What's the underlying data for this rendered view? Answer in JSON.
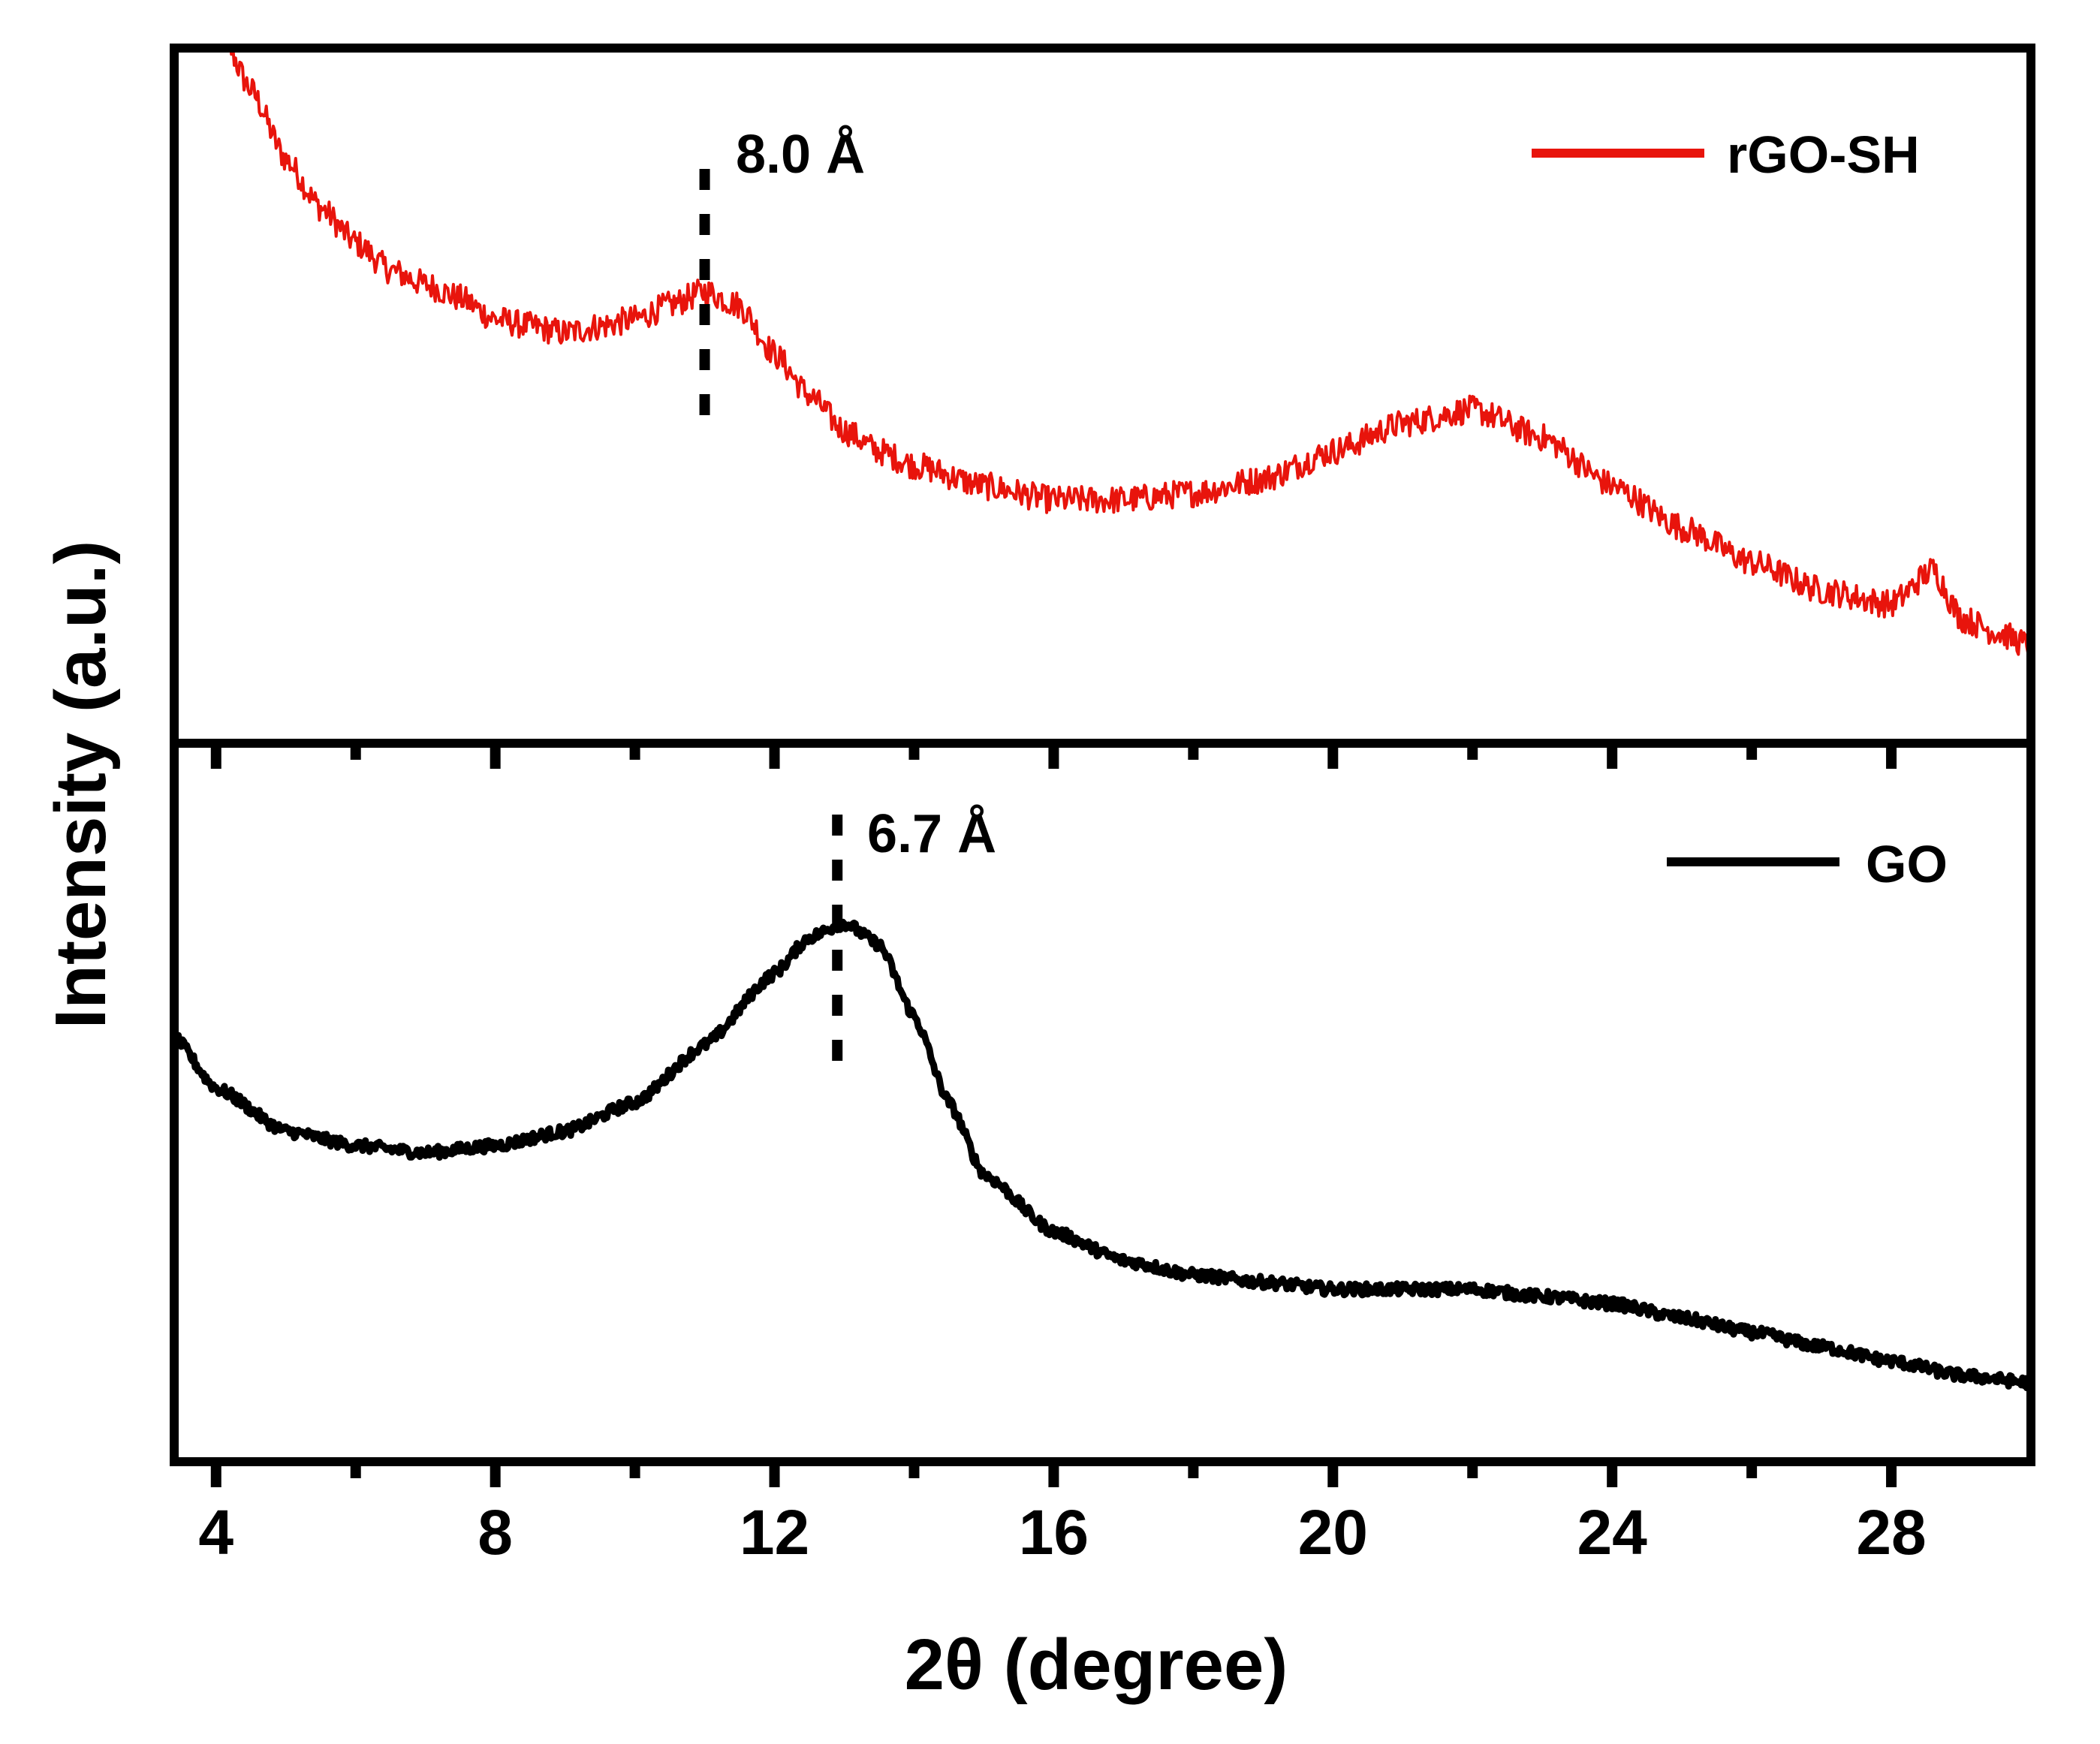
{
  "chart_data": {
    "type": "line",
    "layout": "stacked-panels",
    "xlabel": "2θ (degree)",
    "ylabel": "Intensity (a.u.)",
    "xlim": [
      3.4,
      30
    ],
    "x_ticks": [
      4,
      8,
      12,
      16,
      20,
      24,
      28
    ],
    "x_minor_ticks": [
      6,
      10,
      14,
      18,
      22,
      26
    ],
    "grid": false,
    "panels": [
      {
        "position": "top",
        "ylim": [
          0,
          100
        ],
        "series": [
          {
            "name": "rGO-SH",
            "color": "#e8140c",
            "noise": 2.0,
            "points": [
              [
                4.0,
                104
              ],
              [
                4.5,
                94
              ],
              [
                5.0,
                84
              ],
              [
                5.5,
                77
              ],
              [
                6.0,
                72
              ],
              [
                6.5,
                68
              ],
              [
                7.0,
                66
              ],
              [
                7.5,
                64
              ],
              [
                8.0,
                61
              ],
              [
                8.5,
                60
              ],
              [
                9.0,
                59
              ],
              [
                9.5,
                60
              ],
              [
                10.0,
                61
              ],
              [
                10.5,
                63
              ],
              [
                11.0,
                65
              ],
              [
                11.5,
                63
              ],
              [
                12.0,
                56
              ],
              [
                12.5,
                50
              ],
              [
                13.0,
                45
              ],
              [
                13.5,
                42
              ],
              [
                14.0,
                40
              ],
              [
                15.0,
                37
              ],
              [
                16.0,
                35
              ],
              [
                17.0,
                35
              ],
              [
                18.0,
                36
              ],
              [
                19.0,
                38
              ],
              [
                20.0,
                42
              ],
              [
                21.0,
                46
              ],
              [
                22.0,
                48
              ],
              [
                23.0,
                44
              ],
              [
                24.0,
                37
              ],
              [
                25.0,
                31
              ],
              [
                26.0,
                26
              ],
              [
                27.0,
                22
              ],
              [
                28.0,
                20
              ],
              [
                28.6,
                25
              ],
              [
                29.0,
                18
              ],
              [
                29.5,
                16
              ],
              [
                30.0,
                14
              ]
            ]
          }
        ],
        "annotation": {
          "text": "8.0 Å",
          "x": 11.0
        },
        "legend_position": "top-right"
      },
      {
        "position": "bottom",
        "ylim": [
          0,
          100
        ],
        "series": [
          {
            "name": "GO",
            "color": "#000000",
            "noise": 0.8,
            "points": [
              [
                3.4,
                59
              ],
              [
                4.0,
                52
              ],
              [
                5.0,
                46
              ],
              [
                6.0,
                44
              ],
              [
                7.0,
                43
              ],
              [
                8.0,
                44
              ],
              [
                9.0,
                46
              ],
              [
                10.0,
                50
              ],
              [
                11.0,
                58
              ],
              [
                12.0,
                68
              ],
              [
                12.5,
                73
              ],
              [
                13.0,
                75
              ],
              [
                13.5,
                72
              ],
              [
                14.0,
                62
              ],
              [
                14.5,
                50
              ],
              [
                15.0,
                40
              ],
              [
                16.0,
                32
              ],
              [
                17.0,
                28
              ],
              [
                18.0,
                26
              ],
              [
                19.0,
                25
              ],
              [
                20.0,
                24
              ],
              [
                21.0,
                24
              ],
              [
                22.0,
                24
              ],
              [
                23.0,
                23
              ],
              [
                24.0,
                22
              ],
              [
                25.0,
                20
              ],
              [
                26.0,
                18
              ],
              [
                27.0,
                16
              ],
              [
                28.0,
                14
              ],
              [
                29.0,
                12
              ],
              [
                30.0,
                11
              ]
            ]
          }
        ],
        "annotation": {
          "text": "6.7 Å",
          "x": 12.9
        },
        "legend_position": "top-right"
      }
    ]
  }
}
